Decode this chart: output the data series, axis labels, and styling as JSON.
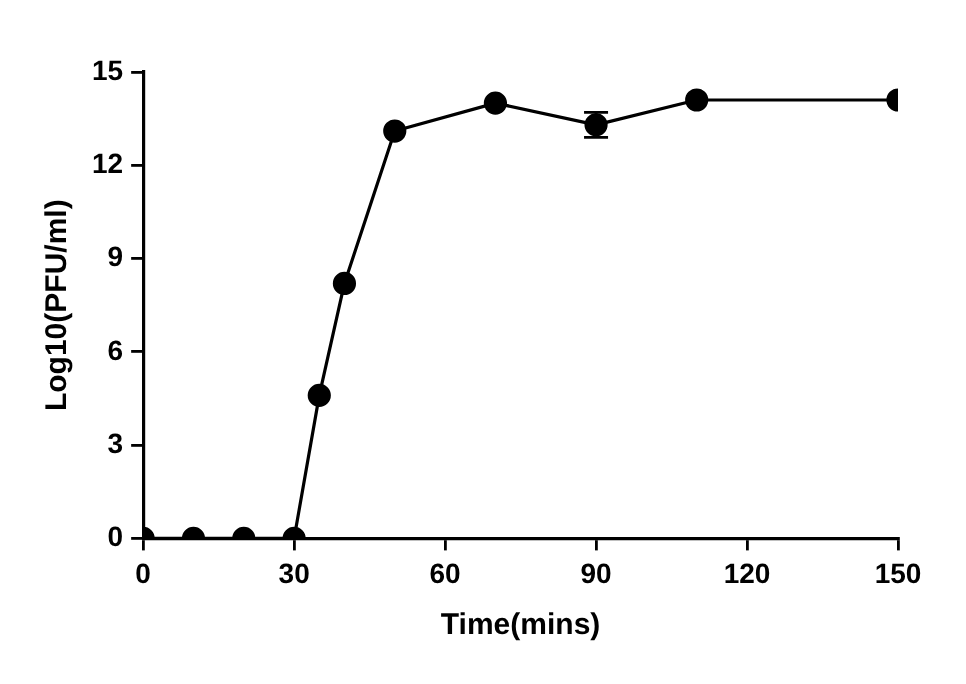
{
  "chart_data": {
    "type": "line",
    "xlabel": "Time(mins)",
    "ylabel": "Log10(PFU/ml)",
    "x": [
      0,
      10,
      20,
      30,
      35,
      40,
      50,
      70,
      90,
      110,
      150
    ],
    "series": [
      {
        "color": "#000000",
        "values": [
          0,
          0,
          0,
          0,
          4.6,
          8.2,
          13.1,
          14.0,
          13.3,
          14.1,
          14.1
        ],
        "errors": [
          null,
          null,
          null,
          null,
          null,
          null,
          null,
          null,
          0.4,
          null,
          null
        ]
      }
    ],
    "xlim": [
      0,
      150
    ],
    "xticks": [
      0,
      30,
      60,
      90,
      120,
      150
    ],
    "ylim": [
      0,
      15
    ],
    "yticks": [
      0,
      3,
      6,
      9,
      12,
      15
    ],
    "grid": false,
    "legend": false,
    "marker": "circle",
    "line_style": "solid"
  }
}
